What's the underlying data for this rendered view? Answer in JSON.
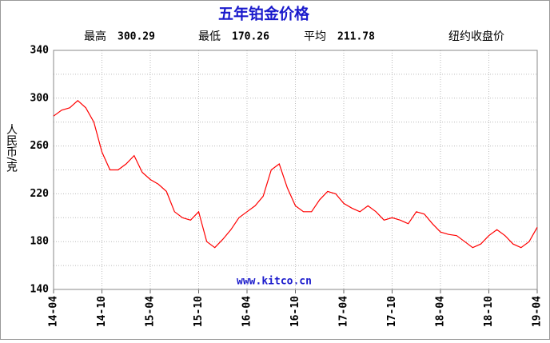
{
  "chart_data": {
    "type": "line",
    "title": "五年铂金价格",
    "stats": [
      {
        "label": "最高",
        "value": 300.29
      },
      {
        "label": "最低",
        "value": 170.26
      },
      {
        "label": "平均",
        "value": 211.78
      }
    ],
    "subtitle": "纽约收盘价",
    "ylabel": "人民币/克",
    "watermark": "www.kitco.cn",
    "x": [
      "14-04",
      "14-05",
      "14-06",
      "14-07",
      "14-08",
      "14-09",
      "14-10",
      "14-11",
      "14-12",
      "15-01",
      "15-02",
      "15-03",
      "15-04",
      "15-05",
      "15-06",
      "15-07",
      "15-08",
      "15-09",
      "15-10",
      "15-11",
      "15-12",
      "16-01",
      "16-02",
      "16-03",
      "16-04",
      "16-05",
      "16-06",
      "16-07",
      "16-08",
      "16-09",
      "16-10",
      "16-11",
      "16-12",
      "17-01",
      "17-02",
      "17-03",
      "17-04",
      "17-05",
      "17-06",
      "17-07",
      "17-08",
      "17-09",
      "17-10",
      "17-11",
      "17-12",
      "18-01",
      "18-02",
      "18-03",
      "18-04",
      "18-05",
      "18-06",
      "18-07",
      "18-08",
      "18-09",
      "18-10",
      "18-11",
      "18-12",
      "19-01",
      "19-02",
      "19-03",
      "19-04"
    ],
    "series": [
      {
        "name": "铂金",
        "color": "#ff0000",
        "values": [
          285,
          290,
          292,
          298,
          292,
          280,
          255,
          240,
          240,
          245,
          252,
          238,
          232,
          228,
          222,
          205,
          200,
          198,
          205,
          180,
          175,
          182,
          190,
          200,
          205,
          210,
          218,
          240,
          245,
          225,
          210,
          205,
          205,
          215,
          222,
          220,
          212,
          208,
          205,
          210,
          205,
          198,
          200,
          198,
          195,
          205,
          203,
          195,
          188,
          186,
          185,
          180,
          175,
          178,
          185,
          190,
          185,
          178,
          175,
          180,
          192
        ]
      }
    ],
    "xlim": [
      "14-04",
      "19-04"
    ],
    "xticks": [
      "14-04",
      "14-10",
      "15-04",
      "15-10",
      "16-04",
      "16-10",
      "17-04",
      "17-10",
      "18-04",
      "18-10",
      "19-04"
    ],
    "ylim": [
      140,
      340
    ],
    "yticks": [
      140,
      180,
      220,
      260,
      300,
      340
    ],
    "ygrid": [
      160,
      200,
      240,
      280,
      320
    ],
    "grid": true
  }
}
